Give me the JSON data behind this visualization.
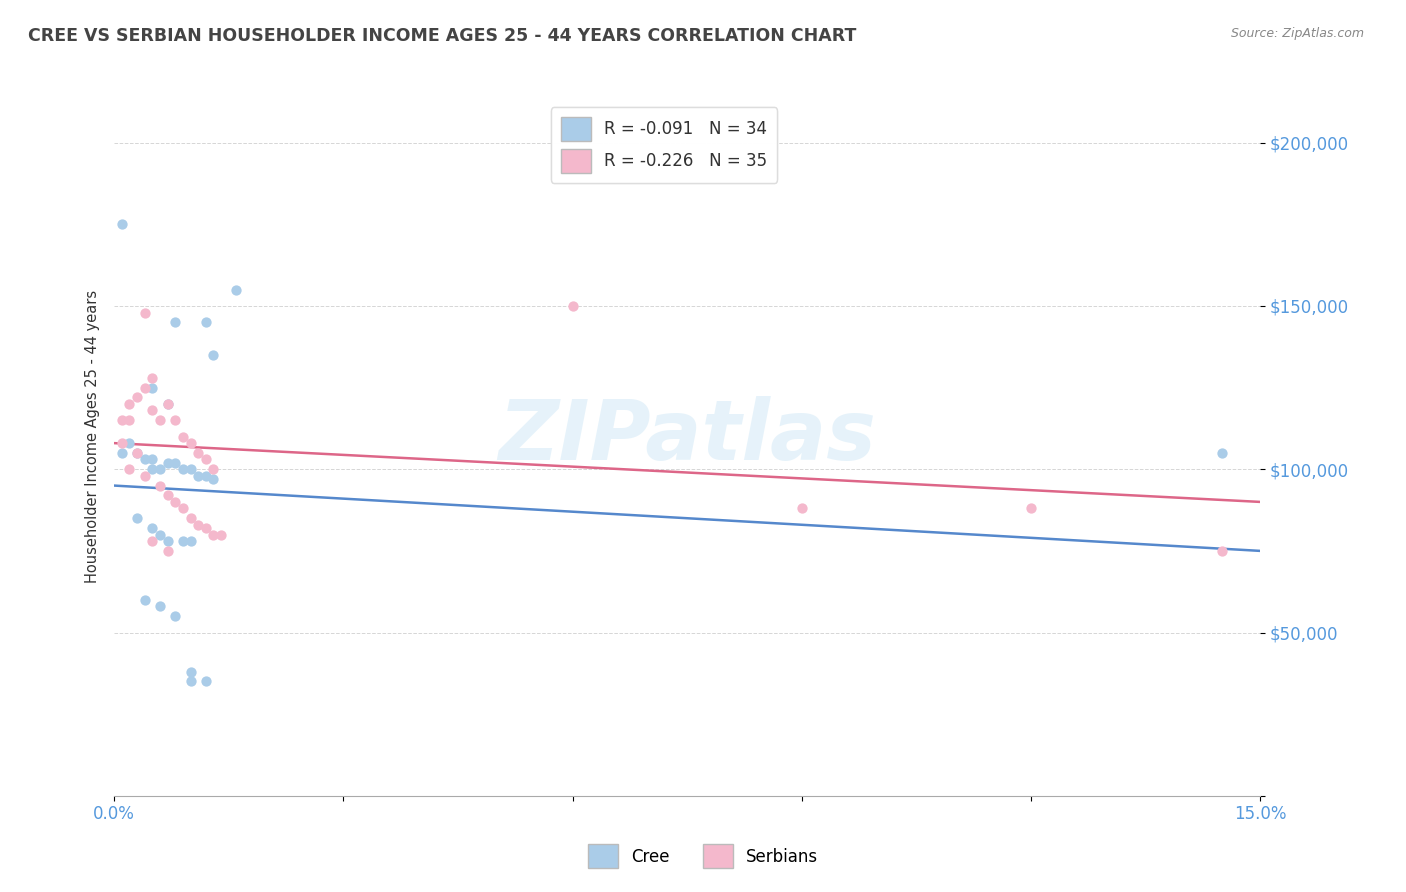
{
  "title": "CREE VS SERBIAN HOUSEHOLDER INCOME AGES 25 - 44 YEARS CORRELATION CHART",
  "source_text": "Source: ZipAtlas.com",
  "ylabel": "Householder Income Ages 25 - 44 years",
  "xlim": [
    0.0,
    0.15
  ],
  "ylim": [
    0,
    220000
  ],
  "watermark": "ZIPatlas",
  "cree_color": "#aacce8",
  "serbian_color": "#f4b8cc",
  "cree_line_color": "#5588cc",
  "serbian_line_color": "#dd6688",
  "legend_R_cree": "R = -0.091",
  "legend_N_cree": "N = 34",
  "legend_R_serbian": "R = -0.226",
  "legend_N_serbian": "N = 35",
  "cree_points": [
    [
      0.001,
      175000
    ],
    [
      0.005,
      125000
    ],
    [
      0.007,
      120000
    ],
    [
      0.008,
      145000
    ],
    [
      0.012,
      145000
    ],
    [
      0.013,
      135000
    ],
    [
      0.016,
      155000
    ],
    [
      0.001,
      105000
    ],
    [
      0.002,
      108000
    ],
    [
      0.003,
      105000
    ],
    [
      0.004,
      103000
    ],
    [
      0.005,
      103000
    ],
    [
      0.005,
      100000
    ],
    [
      0.006,
      100000
    ],
    [
      0.007,
      102000
    ],
    [
      0.008,
      102000
    ],
    [
      0.009,
      100000
    ],
    [
      0.01,
      100000
    ],
    [
      0.011,
      98000
    ],
    [
      0.012,
      98000
    ],
    [
      0.013,
      97000
    ],
    [
      0.003,
      85000
    ],
    [
      0.005,
      82000
    ],
    [
      0.006,
      80000
    ],
    [
      0.007,
      78000
    ],
    [
      0.009,
      78000
    ],
    [
      0.01,
      78000
    ],
    [
      0.004,
      60000
    ],
    [
      0.006,
      58000
    ],
    [
      0.008,
      55000
    ],
    [
      0.01,
      38000
    ],
    [
      0.01,
      35000
    ],
    [
      0.012,
      35000
    ],
    [
      0.145,
      105000
    ]
  ],
  "serbian_points": [
    [
      0.001,
      115000
    ],
    [
      0.002,
      115000
    ],
    [
      0.002,
      120000
    ],
    [
      0.003,
      122000
    ],
    [
      0.004,
      125000
    ],
    [
      0.005,
      128000
    ],
    [
      0.005,
      118000
    ],
    [
      0.006,
      115000
    ],
    [
      0.007,
      120000
    ],
    [
      0.008,
      115000
    ],
    [
      0.009,
      110000
    ],
    [
      0.01,
      108000
    ],
    [
      0.011,
      105000
    ],
    [
      0.012,
      103000
    ],
    [
      0.013,
      100000
    ],
    [
      0.001,
      108000
    ],
    [
      0.002,
      100000
    ],
    [
      0.003,
      105000
    ],
    [
      0.004,
      98000
    ],
    [
      0.006,
      95000
    ],
    [
      0.007,
      92000
    ],
    [
      0.008,
      90000
    ],
    [
      0.009,
      88000
    ],
    [
      0.01,
      85000
    ],
    [
      0.011,
      83000
    ],
    [
      0.012,
      82000
    ],
    [
      0.013,
      80000
    ],
    [
      0.014,
      80000
    ],
    [
      0.005,
      78000
    ],
    [
      0.007,
      75000
    ],
    [
      0.004,
      148000
    ],
    [
      0.06,
      150000
    ],
    [
      0.09,
      88000
    ],
    [
      0.12,
      88000
    ],
    [
      0.145,
      75000
    ]
  ]
}
